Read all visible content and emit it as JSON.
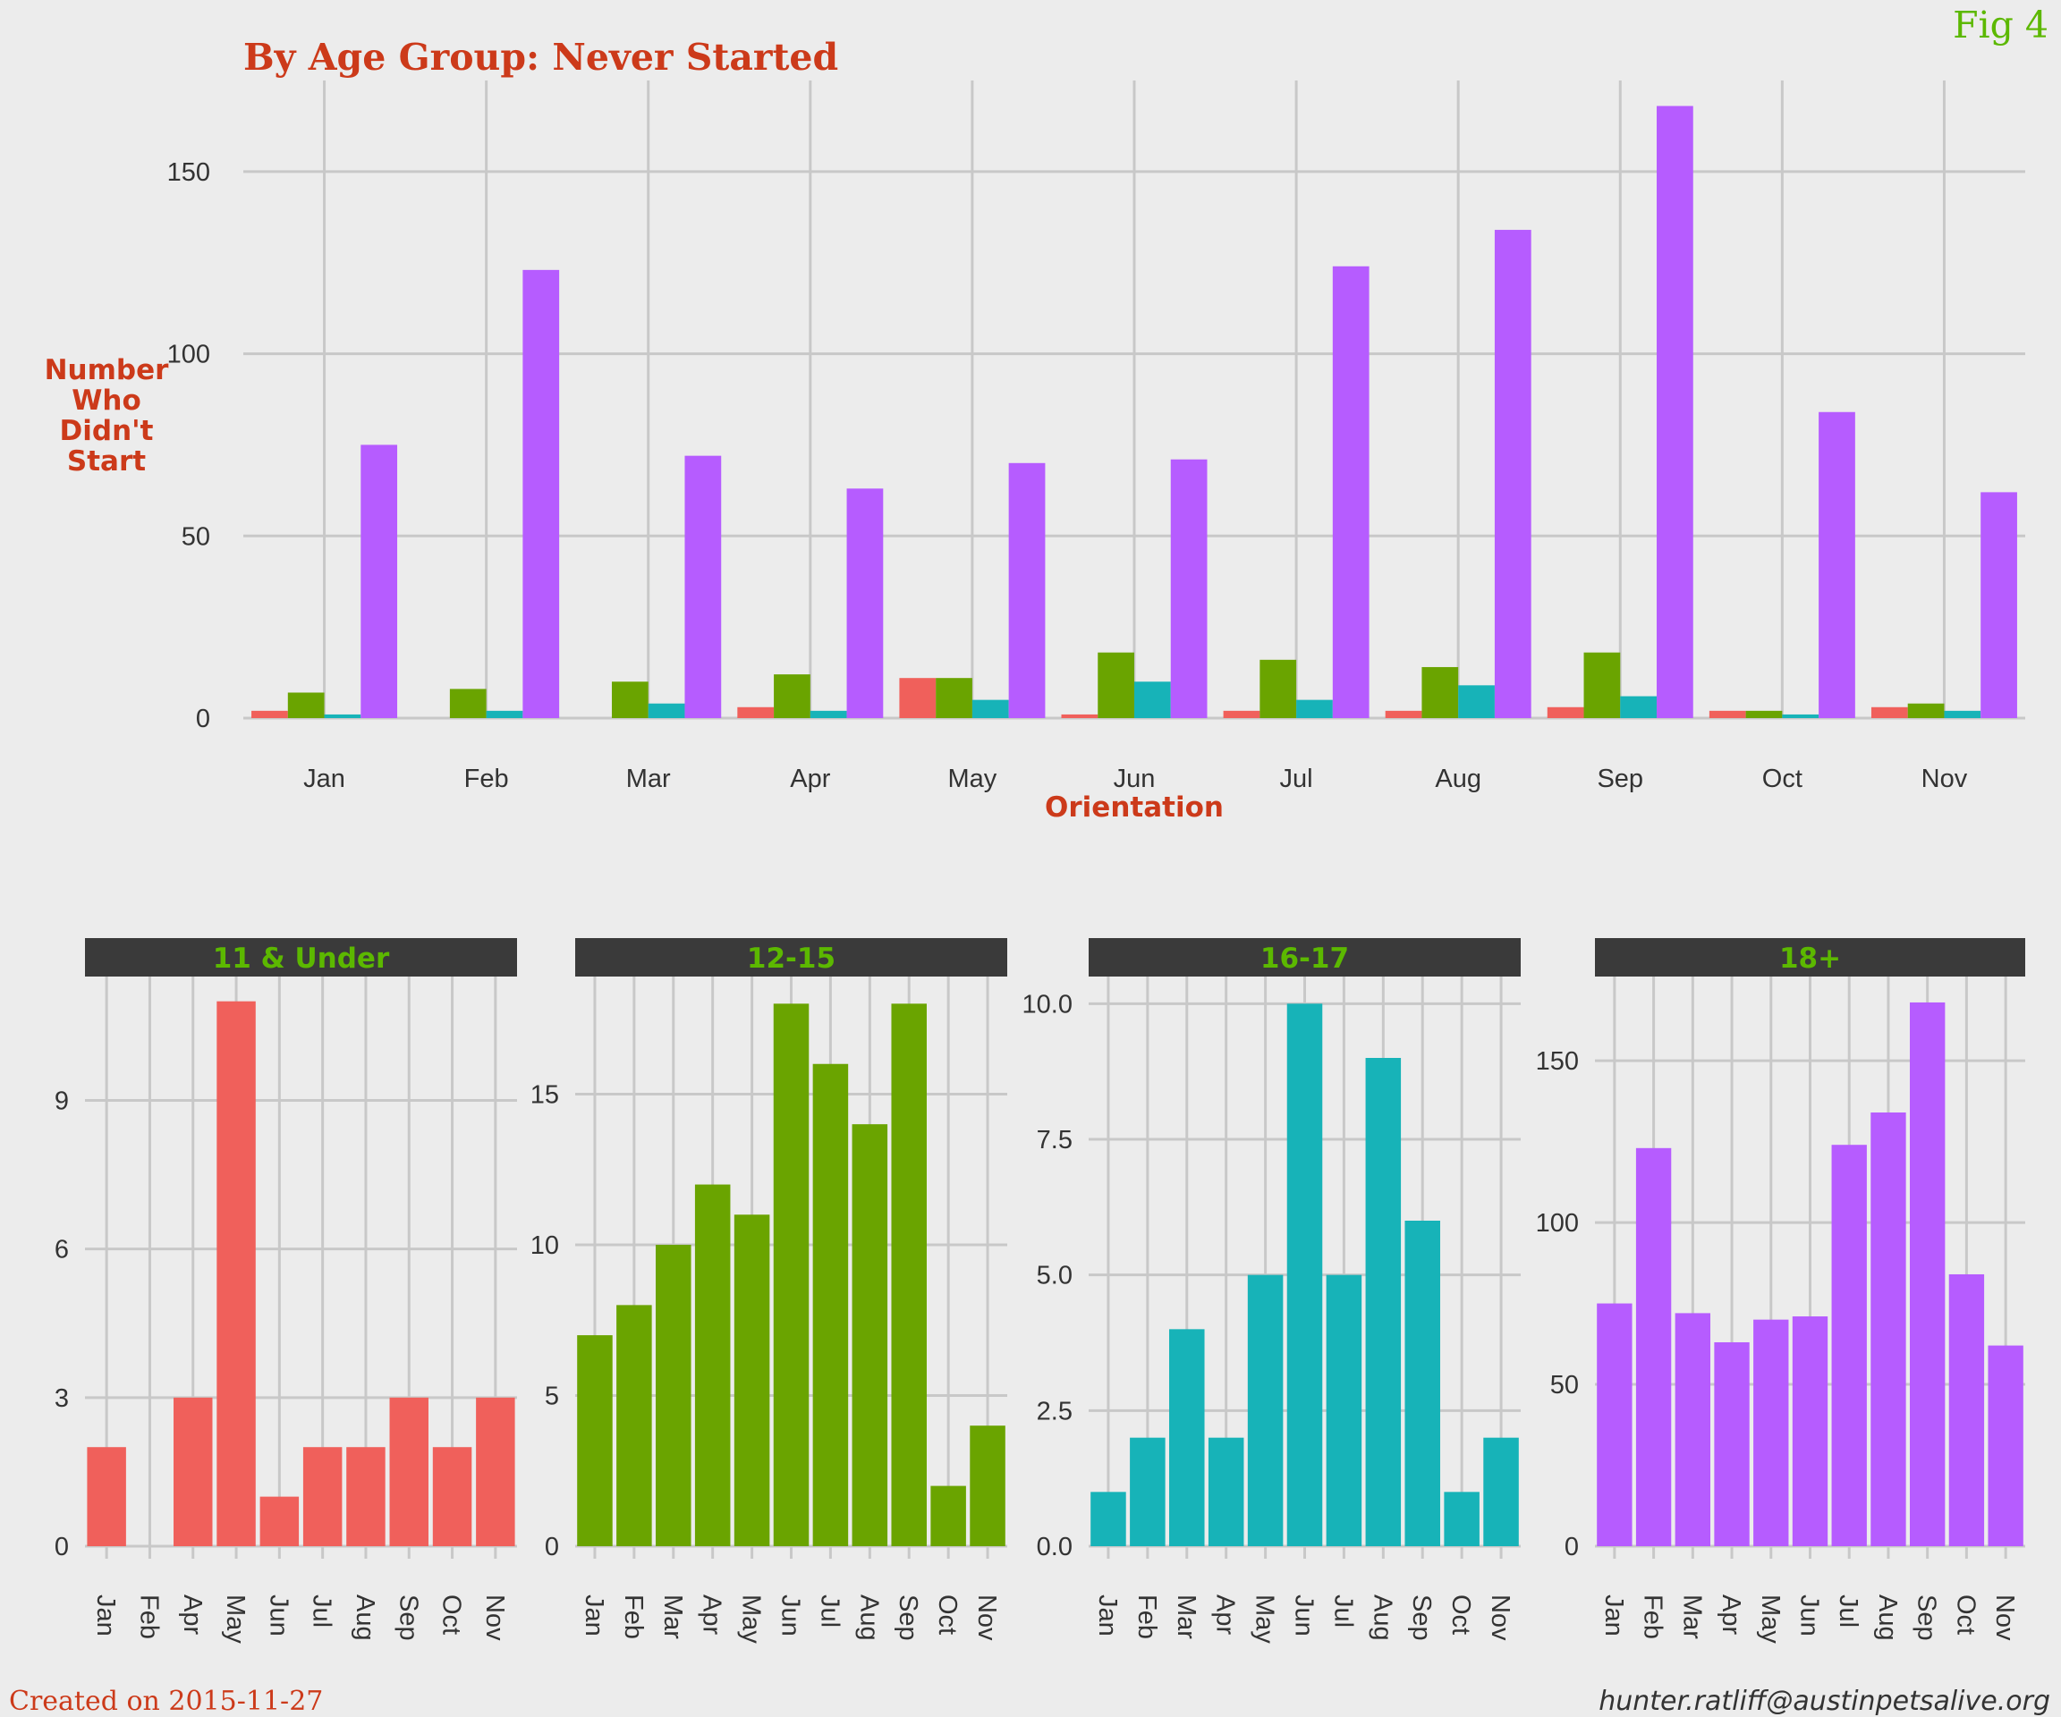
{
  "fig_label": "Fig 4",
  "footer": {
    "created": "Created on 2015-11-27",
    "email": "hunter.ratliff@austinpetsalive.org"
  },
  "colors": {
    "11 & Under": "#f0605b",
    "12-15": "#6aa400",
    "16-17": "#17b3b8",
    "18+": "#b65cff",
    "title": "#cc3a1a",
    "strip_bg": "#3a3a3a",
    "strip_text": "#5cb800"
  },
  "chart_data": [
    {
      "type": "bar",
      "title": "By Age Group: Never Started",
      "xlabel": "Orientation",
      "ylabel": "Number Who Didn't Start",
      "ylabel_lines": [
        "Number",
        "Who",
        "Didn't",
        "Start"
      ],
      "categories": [
        "Jan",
        "Feb",
        "Mar",
        "Apr",
        "May",
        "Jun",
        "Jul",
        "Aug",
        "Sep",
        "Oct",
        "Nov"
      ],
      "yticks": [
        0,
        50,
        100,
        150
      ],
      "ylim": [
        0,
        175
      ],
      "series": [
        {
          "name": "11 & Under",
          "values": [
            2,
            0,
            0,
            3,
            11,
            1,
            2,
            2,
            3,
            2,
            3
          ]
        },
        {
          "name": "12-15",
          "values": [
            7,
            8,
            10,
            12,
            11,
            18,
            16,
            14,
            18,
            2,
            4
          ]
        },
        {
          "name": "16-17",
          "values": [
            1,
            2,
            4,
            2,
            5,
            10,
            5,
            9,
            6,
            1,
            2
          ]
        },
        {
          "name": "18+",
          "values": [
            75,
            123,
            72,
            63,
            70,
            71,
            124,
            134,
            168,
            84,
            62
          ]
        }
      ]
    },
    {
      "type": "bar",
      "title": "11 & Under",
      "categories": [
        "Jan",
        "Feb",
        "Apr",
        "May",
        "Jun",
        "Jul",
        "Aug",
        "Sep",
        "Oct",
        "Nov"
      ],
      "values": [
        2,
        0,
        3,
        11,
        1,
        2,
        2,
        3,
        2,
        3
      ],
      "yticks": [
        0,
        3,
        6,
        9
      ],
      "ylim": [
        0,
        11.5
      ]
    },
    {
      "type": "bar",
      "title": "12-15",
      "categories": [
        "Jan",
        "Feb",
        "Mar",
        "Apr",
        "May",
        "Jun",
        "Jul",
        "Aug",
        "Sep",
        "Oct",
        "Nov"
      ],
      "values": [
        7,
        8,
        10,
        12,
        11,
        18,
        16,
        14,
        18,
        2,
        4
      ],
      "yticks": [
        0,
        5,
        10,
        15
      ],
      "ylim": [
        0,
        18.9
      ]
    },
    {
      "type": "bar",
      "title": "16-17",
      "categories": [
        "Jan",
        "Feb",
        "Mar",
        "Apr",
        "May",
        "Jun",
        "Jul",
        "Aug",
        "Sep",
        "Oct",
        "Nov"
      ],
      "values": [
        1,
        2,
        4,
        2,
        5,
        10,
        5,
        9,
        6,
        1,
        2
      ],
      "yticks": [
        "0.0",
        "2.5",
        "5.0",
        "7.5",
        "10.0"
      ],
      "ylim": [
        0,
        10.5
      ]
    },
    {
      "type": "bar",
      "title": "18+",
      "categories": [
        "Jan",
        "Feb",
        "Mar",
        "Apr",
        "May",
        "Jun",
        "Jul",
        "Aug",
        "Sep",
        "Oct",
        "Nov"
      ],
      "values": [
        75,
        123,
        72,
        63,
        70,
        71,
        124,
        134,
        168,
        84,
        62
      ],
      "yticks": [
        0,
        50,
        100,
        150
      ],
      "ylim": [
        0,
        176
      ]
    }
  ]
}
